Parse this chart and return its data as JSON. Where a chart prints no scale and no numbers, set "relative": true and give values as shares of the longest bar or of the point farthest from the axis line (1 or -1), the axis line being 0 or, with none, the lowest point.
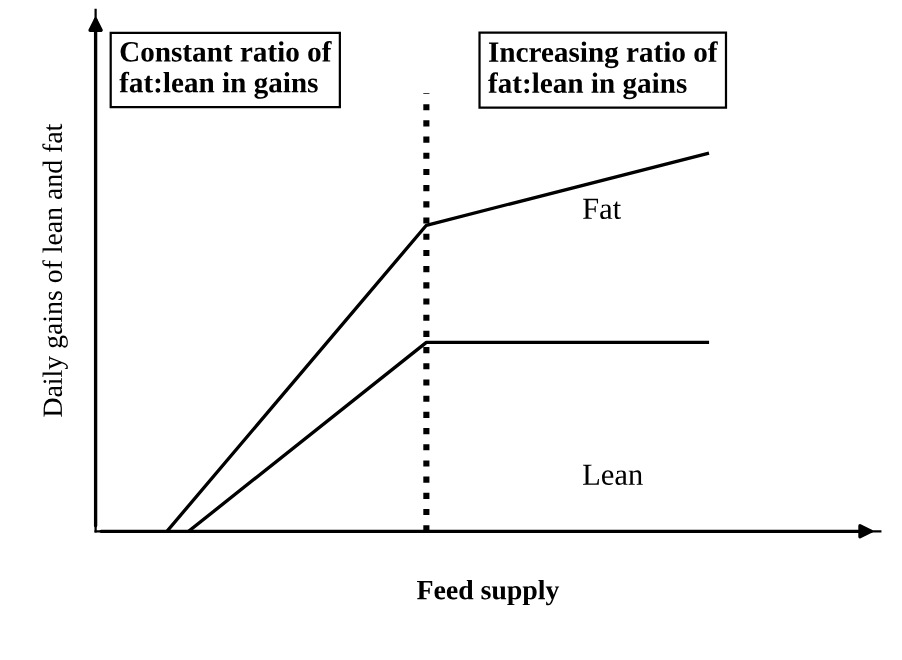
{
  "chart_data": {
    "type": "line",
    "relative": true,
    "xlabel": "Feed supply",
    "ylabel": "Daily gains of lean and fat",
    "categories": [
      null,
      null,
      null,
      null,
      null,
      null,
      null,
      null,
      null,
      null,
      null,
      null,
      null,
      null,
      null,
      null,
      null,
      null,
      null,
      null,
      null,
      null,
      null,
      null,
      null,
      null
    ],
    "series": [
      {
        "color": "#000000",
        "values": [
          0,
          null,
          null,
          null,
          null,
          null,
          null,
          null,
          null,
          null,
          null,
          null,
          0.81,
          null,
          null,
          null,
          null,
          null,
          null,
          null,
          null,
          null,
          null,
          null,
          null,
          1
        ]
      },
      {
        "color": "#000000",
        "values": [
          null,
          0,
          null,
          null,
          null,
          null,
          null,
          null,
          null,
          null,
          null,
          null,
          0.5,
          null,
          null,
          null,
          null,
          null,
          null,
          null,
          null,
          null,
          null,
          null,
          null,
          0.5
        ]
      }
    ],
    "annotations": [
      "Constant ratio of\nfat:lean in gains",
      "Increasing ratio of\nfat:lean in gains",
      "Fat",
      "Lean"
    ],
    "marker": "none",
    "line_style": "solid"
  }
}
